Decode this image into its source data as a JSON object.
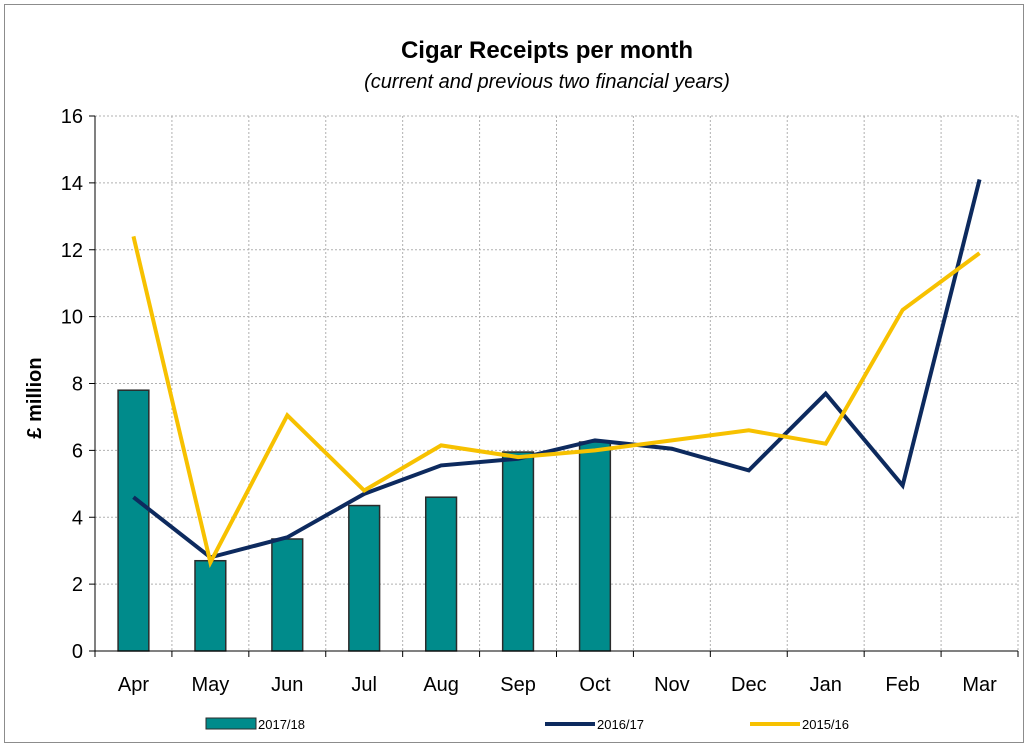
{
  "chart_data": {
    "type": "bar",
    "title": "Cigar Receipts per month",
    "subtitle": "(current and previous two financial years)",
    "xlabel": "",
    "ylabel": "£ million",
    "ylim": [
      0,
      16
    ],
    "yticks": [
      "0",
      "2",
      "4",
      "6",
      "8",
      "10",
      "12",
      "14",
      "16"
    ],
    "grid": true,
    "legend_position": "bottom",
    "categories": [
      "Apr",
      "May",
      "Jun",
      "Jul",
      "Aug",
      "Sep",
      "Oct",
      "Nov",
      "Dec",
      "Jan",
      "Feb",
      "Mar"
    ],
    "series": [
      {
        "name": "2017/18",
        "kind": "bar",
        "color": "#008b8b",
        "values": [
          7.8,
          2.7,
          3.35,
          4.35,
          4.6,
          5.95,
          6.25,
          null,
          null,
          null,
          null,
          null
        ]
      },
      {
        "name": "2016/17",
        "kind": "line",
        "color": "#0d2a5e",
        "values": [
          4.6,
          2.8,
          3.4,
          4.7,
          5.55,
          5.75,
          6.3,
          6.05,
          5.4,
          7.7,
          4.95,
          14.1
        ]
      },
      {
        "name": "2015/16",
        "kind": "line",
        "color": "#f7c100",
        "values": [
          12.4,
          2.65,
          7.05,
          4.8,
          6.15,
          5.8,
          6.0,
          6.3,
          6.6,
          6.2,
          10.2,
          11.9
        ]
      }
    ]
  }
}
